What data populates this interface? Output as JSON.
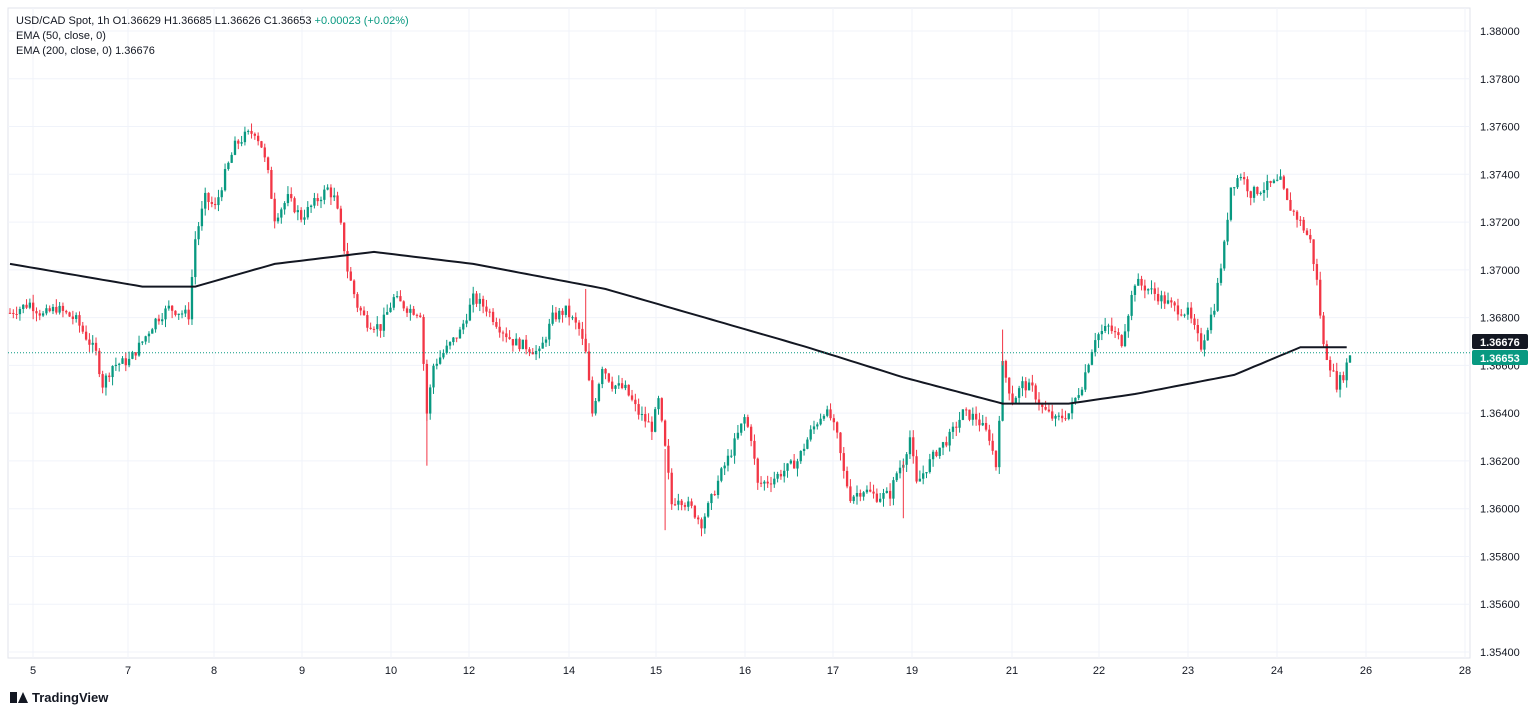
{
  "legend": {
    "symbol": "USD/CAD Spot, 1h",
    "open": "O1.36629",
    "high": "H1.36685",
    "low": "L1.36626",
    "close": "C1.36653",
    "change": "+0.00023 (+0.02%)",
    "ema50": "EMA (50, close, 0)",
    "ema200_label": "EMA (200, close, 0)",
    "ema200_value": "1.36676"
  },
  "brand": "TradingView",
  "colors": {
    "up": "#089981",
    "down": "#f23645",
    "ema": "#131722",
    "grid": "#f0f3fa",
    "price_tag": "#089981",
    "ema_tag": "#131722"
  },
  "chart_data": {
    "type": "candlestick",
    "ylim": [
      1.354,
      1.38
    ],
    "y_ticks": [
      "1.38000",
      "1.37800",
      "1.37600",
      "1.37400",
      "1.37200",
      "1.37000",
      "1.36800",
      "1.36600",
      "1.36400",
      "1.36200",
      "1.36000",
      "1.35800",
      "1.35600",
      "1.35400"
    ],
    "x_ticks": [
      "5",
      "7",
      "8",
      "9",
      "10",
      "12",
      "14",
      "15",
      "16",
      "17",
      "19",
      "21",
      "22",
      "23",
      "24",
      "26",
      "28"
    ],
    "last_price": "1.36653",
    "ema200_last": "1.36676",
    "price_path": [
      [
        0,
        1.3682
      ],
      [
        6,
        1.3686
      ],
      [
        10,
        1.3681
      ],
      [
        14,
        1.3684
      ],
      [
        20,
        1.3679
      ],
      [
        26,
        1.3665
      ],
      [
        28,
        1.3652
      ],
      [
        31,
        1.366
      ],
      [
        36,
        1.3662
      ],
      [
        40,
        1.367
      ],
      [
        44,
        1.3679
      ],
      [
        48,
        1.3684
      ],
      [
        52,
        1.3682
      ],
      [
        54,
        1.3681
      ],
      [
        56,
        1.3713
      ],
      [
        59,
        1.373
      ],
      [
        62,
        1.3726
      ],
      [
        65,
        1.374
      ],
      [
        68,
        1.3752
      ],
      [
        71,
        1.3756
      ],
      [
        74,
        1.3758
      ],
      [
        76,
        1.3752
      ],
      [
        78,
        1.374
      ],
      [
        80,
        1.3722
      ],
      [
        84,
        1.373
      ],
      [
        88,
        1.3722
      ],
      [
        92,
        1.3728
      ],
      [
        96,
        1.3734
      ],
      [
        98,
        1.373
      ],
      [
        100,
        1.3718
      ],
      [
        102,
        1.37
      ],
      [
        105,
        1.3685
      ],
      [
        108,
        1.3678
      ],
      [
        112,
        1.3676
      ],
      [
        116,
        1.3688
      ],
      [
        120,
        1.3684
      ],
      [
        124,
        1.3682
      ],
      [
        126,
        1.364
      ],
      [
        128,
        1.366
      ],
      [
        132,
        1.3667
      ],
      [
        136,
        1.3674
      ],
      [
        140,
        1.3688
      ],
      [
        144,
        1.3684
      ],
      [
        148,
        1.3676
      ],
      [
        152,
        1.367
      ],
      [
        156,
        1.3668
      ],
      [
        160,
        1.3665
      ],
      [
        164,
        1.368
      ],
      [
        168,
        1.3683
      ],
      [
        172,
        1.3675
      ],
      [
        174,
        1.3665
      ],
      [
        176,
        1.364
      ],
      [
        179,
        1.366
      ],
      [
        182,
        1.3652
      ],
      [
        186,
        1.365
      ],
      [
        190,
        1.364
      ],
      [
        194,
        1.3634
      ],
      [
        196,
        1.3645
      ],
      [
        198,
        1.3625
      ],
      [
        200,
        1.3602
      ],
      [
        202,
        1.3605
      ],
      [
        206,
        1.36
      ],
      [
        209,
        1.3594
      ],
      [
        212,
        1.3604
      ],
      [
        215,
        1.3615
      ],
      [
        218,
        1.3624
      ],
      [
        222,
        1.3638
      ],
      [
        224,
        1.363
      ],
      [
        226,
        1.361
      ],
      [
        230,
        1.3612
      ],
      [
        234,
        1.3616
      ],
      [
        238,
        1.362
      ],
      [
        242,
        1.3632
      ],
      [
        246,
        1.3641
      ],
      [
        248,
        1.3638
      ],
      [
        250,
        1.363
      ],
      [
        252,
        1.3615
      ],
      [
        254,
        1.3605
      ],
      [
        258,
        1.3608
      ],
      [
        262,
        1.3605
      ],
      [
        266,
        1.3606
      ],
      [
        268,
        1.3615
      ],
      [
        270,
        1.362
      ],
      [
        272,
        1.363
      ],
      [
        274,
        1.361
      ],
      [
        276,
        1.3615
      ],
      [
        280,
        1.3624
      ],
      [
        284,
        1.363
      ],
      [
        288,
        1.364
      ],
      [
        292,
        1.3638
      ],
      [
        296,
        1.363
      ],
      [
        298,
        1.3618
      ],
      [
        300,
        1.366
      ],
      [
        303,
        1.3645
      ],
      [
        306,
        1.3652
      ],
      [
        309,
        1.365
      ],
      [
        312,
        1.3642
      ],
      [
        316,
        1.3637
      ],
      [
        320,
        1.364
      ],
      [
        324,
        1.3652
      ],
      [
        328,
        1.3672
      ],
      [
        332,
        1.3676
      ],
      [
        336,
        1.367
      ],
      [
        340,
        1.3695
      ],
      [
        344,
        1.3692
      ],
      [
        348,
        1.3688
      ],
      [
        352,
        1.3684
      ],
      [
        356,
        1.3682
      ],
      [
        360,
        1.3668
      ],
      [
        364,
        1.3685
      ],
      [
        367,
        1.371
      ],
      [
        369,
        1.3735
      ],
      [
        372,
        1.374
      ],
      [
        375,
        1.3732
      ],
      [
        380,
        1.3735
      ],
      [
        384,
        1.3737
      ],
      [
        386,
        1.3728
      ],
      [
        390,
        1.372
      ],
      [
        393,
        1.3712
      ],
      [
        395,
        1.3695
      ],
      [
        397,
        1.3668
      ],
      [
        399,
        1.366
      ],
      [
        401,
        1.3652
      ],
      [
        403,
        1.3656
      ],
      [
        405,
        1.3665
      ]
    ],
    "ema200_path": [
      [
        0,
        1.37025
      ],
      [
        40,
        1.3693
      ],
      [
        56,
        1.3693
      ],
      [
        80,
        1.37025
      ],
      [
        110,
        1.37075
      ],
      [
        140,
        1.37025
      ],
      [
        180,
        1.3692
      ],
      [
        210,
        1.368
      ],
      [
        240,
        1.3668
      ],
      [
        270,
        1.3655
      ],
      [
        300,
        1.3644
      ],
      [
        320,
        1.3644
      ],
      [
        340,
        1.3648
      ],
      [
        370,
        1.3656
      ],
      [
        390,
        1.36676
      ],
      [
        405,
        1.36676
      ]
    ]
  }
}
